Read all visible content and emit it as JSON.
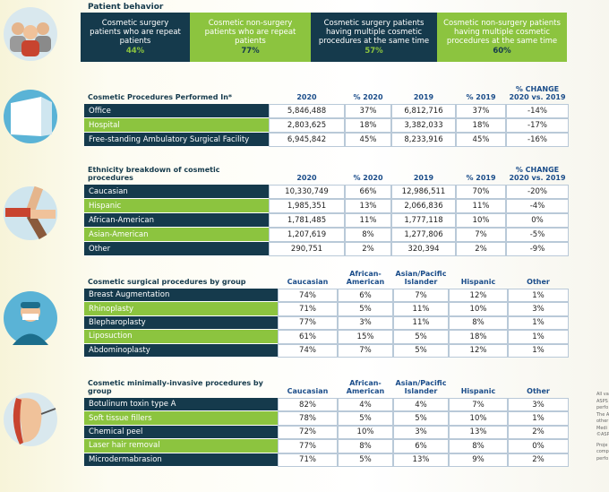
{
  "patient_behavior": {
    "title": "Patient behavior",
    "boxes": [
      {
        "label": "Cosmetic surgery patients who are repeat patients",
        "value": "44%"
      },
      {
        "label": "Cosmetic non-surgery patients who are repeat patients",
        "value": "77%"
      },
      {
        "label": "Cosmetic surgery patients having multiple cosmetic procedures at the same time",
        "value": "57%"
      },
      {
        "label": "Cosmetic non-surgery patients having multiple cosmetic procedures at the same time",
        "value": "60%"
      }
    ]
  },
  "tables": [
    {
      "headers": [
        "Cosmetic Procedures Performed In*",
        "2020",
        "% 2020",
        "2019",
        "% 2019",
        "% CHANGE 2020 vs. 2019"
      ],
      "rows": [
        [
          "Office",
          "5,846,488",
          "37%",
          "6,812,716",
          "37%",
          "-14%"
        ],
        [
          "Hospital",
          "2,803,625",
          "18%",
          "3,382,033",
          "18%",
          "-17%"
        ],
        [
          "Free-standing Ambulatory Surgical Facility",
          "6,945,842",
          "45%",
          "8,233,916",
          "45%",
          "-16%"
        ]
      ]
    },
    {
      "headers": [
        "Ethnicity breakdown of cosmetic procedures",
        "2020",
        "% 2020",
        "2019",
        "% 2019",
        "% CHANGE 2020 vs. 2019"
      ],
      "rows": [
        [
          "Caucasian",
          "10,330,749",
          "66%",
          "12,986,511",
          "70%",
          "-20%"
        ],
        [
          "Hispanic",
          "1,985,351",
          "13%",
          "2,066,836",
          "11%",
          "-4%"
        ],
        [
          "African-American",
          "1,781,485",
          "11%",
          "1,777,118",
          "10%",
          "0%"
        ],
        [
          "Asian-American",
          "1,207,619",
          "8%",
          "1,277,806",
          "7%",
          "-5%"
        ],
        [
          "Other",
          "290,751",
          "2%",
          "320,394",
          "2%",
          "-9%"
        ]
      ]
    },
    {
      "headers": [
        "Cosmetic surgical procedures by group",
        "Caucasian",
        "African-American",
        "Asian/Pacific Islander",
        "Hispanic",
        "Other"
      ],
      "rows": [
        [
          "Breast Augmentation",
          "74%",
          "6%",
          "7%",
          "12%",
          "1%"
        ],
        [
          "Rhinoplasty",
          "71%",
          "5%",
          "11%",
          "10%",
          "3%"
        ],
        [
          "Blepharoplasty",
          "77%",
          "3%",
          "11%",
          "8%",
          "1%"
        ],
        [
          "Liposuction",
          "61%",
          "15%",
          "5%",
          "18%",
          "1%"
        ],
        [
          "Abdominoplasty",
          "74%",
          "7%",
          "5%",
          "12%",
          "1%"
        ]
      ]
    },
    {
      "headers": [
        "Cosmetic minimally-invasive procedures by group",
        "Caucasian",
        "African-American",
        "Asian/Pacific Islander",
        "Hispanic",
        "Other"
      ],
      "rows": [
        [
          "Botulinum toxin type A",
          "82%",
          "4%",
          "4%",
          "7%",
          "3%"
        ],
        [
          "Soft tissue fillers",
          "78%",
          "5%",
          "5%",
          "10%",
          "1%"
        ],
        [
          "Chemical peel",
          "72%",
          "10%",
          "3%",
          "13%",
          "2%"
        ],
        [
          "Laser hair removal",
          "77%",
          "8%",
          "6%",
          "8%",
          "0%"
        ],
        [
          "Microdermabrasion",
          "71%",
          "5%",
          "13%",
          "9%",
          "2%"
        ]
      ]
    }
  ],
  "side_note": [
    "All va",
    "ASPS",
    "perfo",
    "The A",
    "other",
    "Medi",
    "©ASP",
    "Proje",
    "comp",
    "perfo"
  ]
}
